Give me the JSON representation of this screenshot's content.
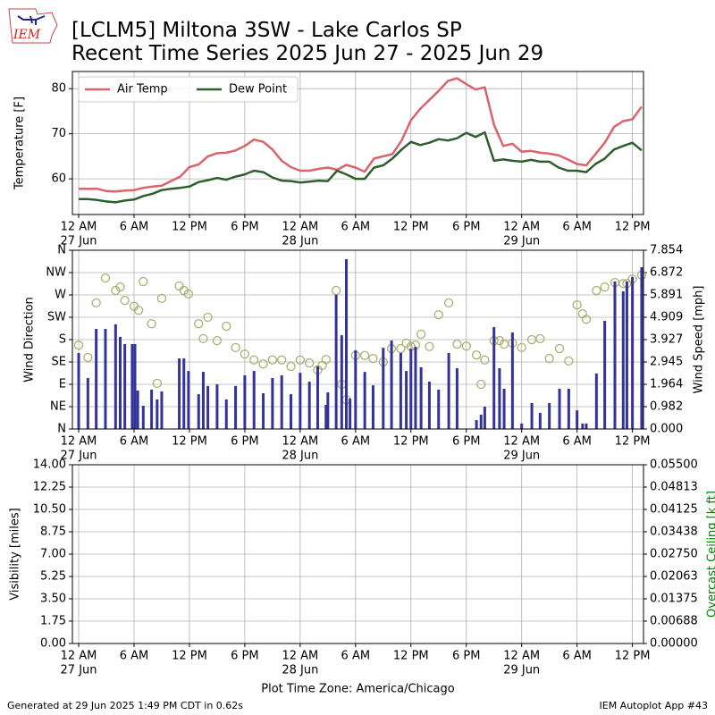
{
  "title": "[LCLM5] Miltona 3SW - Lake Carlos SP",
  "subtitle": "Recent Time Series 2025 Jun 27 - 2025 Jun 29",
  "logo": "IEM",
  "footer_left": "Generated at 29 Jun 2025 1:49 PM CDT in 0.62s",
  "footer_right": "IEM Autoplot App #43",
  "chart_data": [
    {
      "type": "line",
      "ylabel": "Temperature [F]",
      "grid": true,
      "legend": "upper left",
      "xlim": [
        -0.68,
        61.2
      ],
      "xticks": [
        {
          "value": 0,
          "label": "12 AM"
        },
        {
          "value": 6,
          "label": "6 AM"
        },
        {
          "value": 12,
          "label": "12 PM"
        },
        {
          "value": 18,
          "label": "6 PM"
        },
        {
          "value": 24,
          "label": "12 AM"
        },
        {
          "value": 30,
          "label": "6 AM"
        },
        {
          "value": 36,
          "label": "12 PM"
        },
        {
          "value": 42,
          "label": "6 PM"
        },
        {
          "value": 48,
          "label": "12 AM"
        },
        {
          "value": 54,
          "label": "6 AM"
        },
        {
          "value": 60,
          "label": "12 PM"
        }
      ],
      "xtick_dates": [
        {
          "value": 0,
          "label": "27 Jun"
        },
        {
          "value": 24,
          "label": "28 Jun"
        },
        {
          "value": 48,
          "label": "29 Jun"
        }
      ],
      "ylim": [
        52.1,
        83.8
      ],
      "yticks": [
        60,
        70,
        80
      ],
      "x": [
        0,
        1,
        2,
        3,
        4,
        5,
        6,
        7,
        8,
        9,
        10,
        11,
        12,
        13,
        14,
        15,
        16,
        17,
        18,
        19,
        20,
        21,
        22,
        23,
        24,
        25,
        26,
        27,
        28,
        29,
        30,
        31,
        32,
        33,
        34,
        35,
        36,
        37,
        38,
        39,
        40,
        41,
        42,
        43,
        44,
        45,
        46,
        47,
        48,
        49,
        50,
        51,
        52,
        53,
        54,
        55,
        56,
        57,
        58,
        59,
        60,
        61
      ],
      "series": [
        {
          "name": "Air Temp",
          "color": "#d9646b",
          "values": [
            57.8,
            57.8,
            57.8,
            57.3,
            57.2,
            57.4,
            57.5,
            58.0,
            58.3,
            58.5,
            59.5,
            60.5,
            62.6,
            63.2,
            65.0,
            65.7,
            65.8,
            66.3,
            67.3,
            68.7,
            68.2,
            66.5,
            64.0,
            62.6,
            61.8,
            61.8,
            62.2,
            62.5,
            62.0,
            63.1,
            62.5,
            61.6,
            64.5,
            65.0,
            65.5,
            68.5,
            73.0,
            75.5,
            77.5,
            79.5,
            81.7,
            82.3,
            81.0,
            79.8,
            80.3,
            72.0,
            67.3,
            67.8,
            66.0,
            66.2,
            65.8,
            65.6,
            65.2,
            64.3,
            63.3,
            63.0,
            65.5,
            68.0,
            71.5,
            72.8,
            73.2,
            76.0
          ]
        },
        {
          "name": "Dew Point",
          "color": "#2e5e2e",
          "values": [
            55.5,
            55.5,
            55.3,
            55.0,
            54.8,
            55.2,
            55.4,
            56.2,
            56.7,
            57.5,
            57.8,
            58.0,
            58.3,
            59.3,
            59.7,
            60.2,
            59.8,
            60.5,
            61.0,
            61.8,
            61.5,
            60.3,
            59.6,
            59.5,
            59.2,
            59.4,
            59.6,
            59.5,
            61.8,
            61.0,
            60.0,
            60.0,
            62.5,
            63.0,
            64.5,
            66.5,
            68.2,
            67.5,
            68.0,
            68.8,
            68.5,
            69.0,
            70.2,
            69.3,
            70.3,
            64.0,
            64.3,
            64.0,
            63.8,
            64.2,
            63.8,
            63.8,
            62.5,
            61.8,
            61.8,
            61.5,
            63.3,
            64.5,
            66.5,
            67.3,
            68.0,
            66.3
          ]
        }
      ]
    },
    {
      "type": "combo",
      "ylabel": "Wind Direction",
      "y2label": "Wind Speed [mph]",
      "grid": true,
      "xlim": [
        -0.68,
        61.2
      ],
      "xticks": [
        {
          "value": 0,
          "label": "12 AM"
        },
        {
          "value": 6,
          "label": "6 AM"
        },
        {
          "value": 12,
          "label": "12 PM"
        },
        {
          "value": 18,
          "label": "6 PM"
        },
        {
          "value": 24,
          "label": "12 AM"
        },
        {
          "value": 30,
          "label": "6 AM"
        },
        {
          "value": 36,
          "label": "12 PM"
        },
        {
          "value": 42,
          "label": "6 PM"
        },
        {
          "value": 48,
          "label": "12 AM"
        },
        {
          "value": 54,
          "label": "6 AM"
        },
        {
          "value": 60,
          "label": "12 PM"
        }
      ],
      "xtick_dates": [
        {
          "value": 0,
          "label": "27 Jun"
        },
        {
          "value": 24,
          "label": "28 Jun"
        },
        {
          "value": 48,
          "label": "29 Jun"
        }
      ],
      "ylim": [
        0,
        360
      ],
      "yticks": [
        {
          "value": 0,
          "label": "N"
        },
        {
          "value": 45,
          "label": "NE"
        },
        {
          "value": 90,
          "label": "E"
        },
        {
          "value": 135,
          "label": "SE"
        },
        {
          "value": 180,
          "label": "S"
        },
        {
          "value": 225,
          "label": "SW"
        },
        {
          "value": 270,
          "label": "W"
        },
        {
          "value": 315,
          "label": "NW"
        },
        {
          "value": 360,
          "label": "N"
        }
      ],
      "y2lim": [
        0,
        7.854
      ],
      "y2ticks": [
        {
          "value": 0,
          "label": "0.000"
        },
        0.982,
        1.964,
        2.945,
        3.927,
        4.909,
        5.891,
        6.872,
        7.854
      ],
      "series": [
        {
          "type": "scatter",
          "color": "#a8b070",
          "x": [
            0,
            1,
            1.9,
            2.9,
            4,
            4.5,
            5,
            6,
            6.5,
            7,
            7.9,
            8.5,
            9,
            10.9,
            11.4,
            11.9,
            13,
            13.5,
            14,
            15,
            16,
            17,
            18,
            19,
            20,
            21,
            22,
            23,
            24,
            25,
            25.9,
            26.4,
            26.8,
            27.9,
            28.5,
            29,
            30,
            31,
            31.9,
            33,
            33.9,
            34.9,
            35.5,
            36,
            36.5,
            37.1,
            38,
            39,
            40.1,
            41,
            42,
            43.1,
            43.6,
            44,
            45,
            45.6,
            46.1,
            47,
            48,
            49.1,
            50,
            51,
            52.1,
            53.1,
            54,
            54.6,
            55,
            56.1,
            57,
            58.1,
            59,
            59.4,
            60,
            61
          ],
          "values": [
            169,
            144,
            254,
            304,
            279,
            286,
            259,
            247,
            239,
            297,
            212,
            92,
            263,
            288,
            279,
            272,
            212,
            182,
            225,
            178,
            207,
            164,
            151,
            139,
            131,
            139,
            139,
            126,
            139,
            133,
            119,
            128,
            140,
            279,
            90,
            59,
            148,
            148,
            142,
            135,
            162,
            162,
            173,
            166,
            169,
            191,
            166,
            230,
            254,
            171,
            167,
            149,
            90,
            139,
            178,
            178,
            171,
            173,
            164,
            180,
            182,
            142,
            162,
            137,
            250,
            232,
            221,
            279,
            286,
            295,
            293,
            293,
            302,
            310
          ]
        },
        {
          "type": "bar",
          "axis": "y2",
          "color": "#333399",
          "x": [
            0,
            1,
            1.9,
            2.9,
            4,
            4.5,
            5,
            5.8,
            6.1,
            6.4,
            7,
            7.9,
            8.5,
            9,
            10.9,
            11.4,
            11.9,
            13,
            13.5,
            14,
            15,
            16,
            17,
            18,
            19,
            20,
            21,
            22,
            23,
            24,
            25,
            25.9,
            26.8,
            27,
            27.9,
            28.5,
            29,
            29.4,
            30,
            31,
            31.9,
            33,
            33.9,
            34.9,
            35.5,
            36,
            36.5,
            37.1,
            38,
            39,
            40.1,
            41,
            43.1,
            43.6,
            44,
            45,
            45.6,
            46.1,
            47,
            48,
            49.1,
            50,
            51,
            52.1,
            53.1,
            54,
            54.6,
            55,
            56.1,
            57,
            58.1,
            59,
            59.4,
            60,
            61
          ],
          "values": [
            3.34,
            2.24,
            4.4,
            4.4,
            4.6,
            4.05,
            3.73,
            3.73,
            3.73,
            1.69,
            1.02,
            1.73,
            1.3,
            1.65,
            3.1,
            3.1,
            2.55,
            1.53,
            2.51,
            1.89,
            1.96,
            1.3,
            1.89,
            2.36,
            2.55,
            1.57,
            2.24,
            2.36,
            1.53,
            2.47,
            2.08,
            2.75,
            1.06,
            1.61,
            5.9,
            4.12,
            7.46,
            1.34,
            3.46,
            2.51,
            1.92,
            3.57,
            3.89,
            3.34,
            2.55,
            3.53,
            3.61,
            2.71,
            2.08,
            1.73,
            3.34,
            2.67,
            0.39,
            0.63,
            0.98,
            4.48,
            2.67,
            1.77,
            4.24,
            0.24,
            1.14,
            0.71,
            1.14,
            1.77,
            1.77,
            0.82,
            0.24,
            0.24,
            2.44,
            4.75,
            6.48,
            6.05,
            6.48,
            6.68,
            7.11
          ]
        }
      ]
    },
    {
      "type": "line",
      "ylabel": "Visibility [miles]",
      "y2label": "Overcast Ceiling [k ft]",
      "y2label_color": "#008000",
      "xlabel": "Plot Time Zone: America/Chicago",
      "grid": true,
      "xlim": [
        -0.68,
        61.2
      ],
      "xticks": [
        {
          "value": 0,
          "label": "12 AM"
        },
        {
          "value": 6,
          "label": "6 AM"
        },
        {
          "value": 12,
          "label": "12 PM"
        },
        {
          "value": 18,
          "label": "6 PM"
        },
        {
          "value": 24,
          "label": "12 AM"
        },
        {
          "value": 30,
          "label": "6 AM"
        },
        {
          "value": 36,
          "label": "12 PM"
        },
        {
          "value": 42,
          "label": "6 PM"
        },
        {
          "value": 48,
          "label": "12 AM"
        },
        {
          "value": 54,
          "label": "6 AM"
        },
        {
          "value": 60,
          "label": "12 PM"
        }
      ],
      "xtick_dates": [
        {
          "value": 0,
          "label": "27 Jun"
        },
        {
          "value": 24,
          "label": "28 Jun"
        },
        {
          "value": 48,
          "label": "29 Jun"
        }
      ],
      "ylim": [
        0,
        14
      ],
      "yticks": [
        {
          "value": 0,
          "label": "0.00"
        },
        1.75,
        {
          "value": 3.5,
          "label": "3.50"
        },
        5.25,
        {
          "value": 7,
          "label": "7.00"
        },
        8.75,
        {
          "value": 10.5,
          "label": "10.50"
        },
        12.25,
        {
          "value": 14,
          "label": "14.00"
        }
      ],
      "y2lim": [
        0,
        0.055
      ],
      "y2ticks": [
        {
          "value": 0,
          "label": "0.00000"
        },
        0.00688,
        0.01375,
        0.02063,
        {
          "value": 0.0275,
          "label": "0.02750"
        },
        0.03438,
        0.04125,
        0.04813,
        {
          "value": 0.055,
          "label": "0.05500"
        }
      ],
      "series": []
    }
  ]
}
